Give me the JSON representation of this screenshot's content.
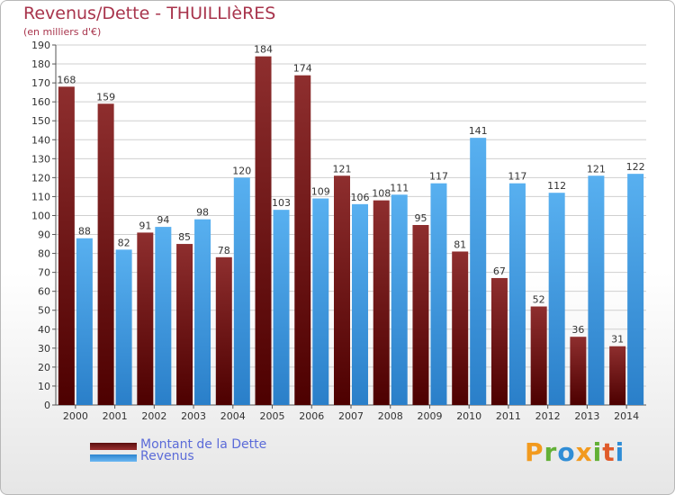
{
  "title": "Revenus/Dette - THUILLIèRES",
  "subtitle": "(en milliers d'€)",
  "brand": {
    "letters": [
      {
        "ch": "P",
        "color": "#f29a1e"
      },
      {
        "ch": "r",
        "color": "#62b036"
      },
      {
        "ch": "o",
        "color": "#2f8dd6"
      },
      {
        "ch": "x",
        "color": "#f29a1e"
      },
      {
        "ch": "i",
        "color": "#62b036"
      },
      {
        "ch": "t",
        "color": "#e05a2a"
      },
      {
        "ch": "i",
        "color": "#2f8dd6"
      }
    ]
  },
  "chart_data": {
    "type": "bar",
    "categories": [
      "2000",
      "2001",
      "2002",
      "2003",
      "2004",
      "2005",
      "2006",
      "2007",
      "2008",
      "2009",
      "2010",
      "2011",
      "2012",
      "2013",
      "2014"
    ],
    "series": [
      {
        "name": "Montant de la Dette",
        "color": "#7d1d1d",
        "values": [
          168,
          159,
          91,
          85,
          78,
          184,
          174,
          121,
          108,
          95,
          81,
          67,
          52,
          36,
          31
        ]
      },
      {
        "name": "Revenus",
        "color": "#3f9ae3",
        "values": [
          88,
          82,
          94,
          98,
          120,
          103,
          109,
          106,
          111,
          117,
          141,
          117,
          112,
          121,
          122
        ]
      }
    ],
    "ylim": [
      0,
      190
    ],
    "yticks": [
      0,
      10,
      20,
      30,
      40,
      50,
      60,
      70,
      80,
      90,
      100,
      110,
      120,
      130,
      140,
      150,
      160,
      170,
      180,
      190
    ],
    "grid": true,
    "legend": "bottom-left"
  }
}
